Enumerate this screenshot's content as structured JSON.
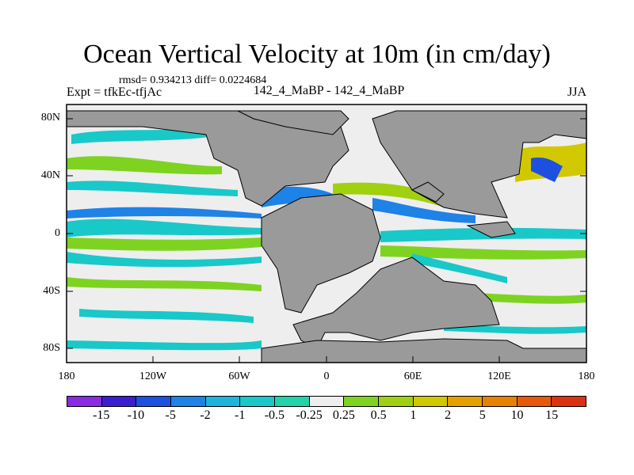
{
  "title": "Ocean Vertical Velocity at 10m (in cm/day)",
  "stats": "rmsd= 0.934213 diff= 0.0224684",
  "expt": "Expt = tfkEc-tfjAc",
  "center_label": "142_4_MaBP - 142_4_MaBP",
  "season": "JJA",
  "lat_ticks": [
    "80N",
    "40N",
    "0",
    "40S",
    "80S"
  ],
  "lon_ticks": [
    "180",
    "120W",
    "60W",
    "0",
    "60E",
    "120E",
    "180"
  ],
  "colorbar": {
    "labels": [
      "-15",
      "-10",
      "-5",
      "-2",
      "-1",
      "-0.5",
      "-0.25",
      "0.25",
      "0.5",
      "1",
      "2",
      "5",
      "10",
      "15"
    ],
    "colors": [
      "#8a2be2",
      "#3a1fd0",
      "#1e50e0",
      "#1e82e6",
      "#1fb4dc",
      "#19c8c8",
      "#22d2a8",
      "#eeeeee",
      "#7ed321",
      "#a0d010",
      "#d2c800",
      "#e6a000",
      "#e68200",
      "#e65a0a",
      "#dc3214"
    ]
  },
  "colors": {
    "land": "#9a9a9a",
    "ocean_neutral": "#eeeeee"
  }
}
